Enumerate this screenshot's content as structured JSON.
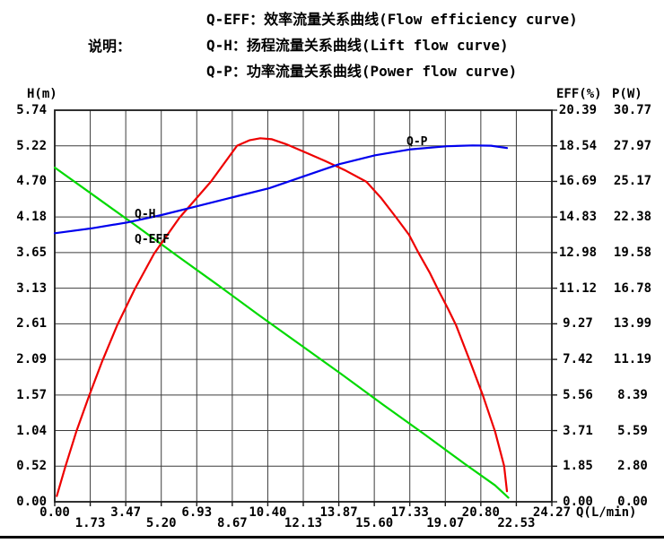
{
  "legend": {
    "label": "说明：",
    "items": [
      {
        "name": "Q-EFF",
        "text": "Q-EFF：效率流量关系曲线(Flow efficiency curve)"
      },
      {
        "name": "Q-H",
        "text": "Q-H：扬程流量关系曲线(Lift flow curve)"
      },
      {
        "name": "Q-P",
        "text": "Q-P：功率流量关系曲线(Power flow curve)"
      }
    ]
  },
  "curve_labels": {
    "qh": "Q-H",
    "qeff": "Q-EFF",
    "qp": "Q-P"
  },
  "chart_data": {
    "type": "line",
    "grid": true,
    "legend_position": "top",
    "xlabel": "Q(L/min)",
    "x_range": [
      0,
      24.27
    ],
    "x_tick_labels": [
      "0.00",
      "1.73",
      "3.47",
      "5.20",
      "6.93",
      "8.67",
      "10.40",
      "12.13",
      "13.87",
      "15.60",
      "17.33",
      "19.07",
      "20.80",
      "22.53",
      "24.27"
    ],
    "axes": {
      "left": {
        "title": "H(m)",
        "range": [
          0,
          5.74
        ],
        "tick_labels": [
          "5.74",
          "5.22",
          "4.70",
          "4.18",
          "3.65",
          "3.13",
          "2.61",
          "2.09",
          "1.57",
          "1.04",
          "0.52",
          "0.00"
        ]
      },
      "right_eff": {
        "title": "EFF(%)",
        "range": [
          0,
          20.39
        ],
        "tick_labels": [
          "20.39",
          "18.54",
          "16.69",
          "14.83",
          "12.98",
          "11.12",
          "9.27",
          "7.42",
          "5.56",
          "3.71",
          "1.85",
          "0.00"
        ]
      },
      "right_p": {
        "title": "P(W)",
        "range": [
          0,
          30.77
        ],
        "tick_labels": [
          "30.77",
          "27.97",
          "25.17",
          "22.38",
          "19.58",
          "16.78",
          "13.99",
          "11.19",
          "8.39",
          "5.59",
          "2.80",
          "0.00"
        ]
      }
    },
    "series": [
      {
        "name": "Q-H",
        "color": "#00d900",
        "y_axis": "left",
        "points": [
          [
            0.0,
            4.9
          ],
          [
            2.0,
            4.47
          ],
          [
            4.0,
            4.04
          ],
          [
            6.0,
            3.6
          ],
          [
            8.0,
            3.17
          ],
          [
            10.0,
            2.73
          ],
          [
            12.0,
            2.3
          ],
          [
            14.0,
            1.87
          ],
          [
            16.0,
            1.43
          ],
          [
            18.0,
            1.0
          ],
          [
            20.0,
            0.56
          ],
          [
            21.5,
            0.24
          ],
          [
            22.15,
            0.06
          ]
        ]
      },
      {
        "name": "Q-EFF",
        "color": "#ee0000",
        "y_axis": "right_eff",
        "points": [
          [
            0.1,
            0.3
          ],
          [
            0.51,
            1.79
          ],
          [
            1.05,
            3.65
          ],
          [
            1.68,
            5.52
          ],
          [
            2.32,
            7.33
          ],
          [
            3.05,
            9.19
          ],
          [
            3.9,
            11.06
          ],
          [
            4.85,
            12.92
          ],
          [
            6.09,
            14.79
          ],
          [
            7.62,
            16.66
          ],
          [
            8.9,
            18.54
          ],
          [
            9.5,
            18.82
          ],
          [
            10.03,
            18.93
          ],
          [
            10.6,
            18.88
          ],
          [
            11.3,
            18.62
          ],
          [
            12.22,
            18.2
          ],
          [
            13.2,
            17.75
          ],
          [
            14.2,
            17.25
          ],
          [
            15.22,
            16.66
          ],
          [
            15.95,
            15.8
          ],
          [
            16.68,
            14.79
          ],
          [
            17.3,
            13.9
          ],
          [
            17.78,
            12.92
          ],
          [
            18.3,
            11.95
          ],
          [
            18.72,
            11.04
          ],
          [
            19.2,
            10.05
          ],
          [
            19.6,
            9.18
          ],
          [
            20.25,
            7.39
          ],
          [
            20.91,
            5.52
          ],
          [
            21.5,
            3.65
          ],
          [
            21.94,
            1.87
          ],
          [
            22.08,
            0.55
          ]
        ]
      },
      {
        "name": "Q-P",
        "color": "#0000ee",
        "y_axis": "right_p",
        "points": [
          [
            0.0,
            21.1
          ],
          [
            1.78,
            21.48
          ],
          [
            3.53,
            21.95
          ],
          [
            5.21,
            22.53
          ],
          [
            6.96,
            23.23
          ],
          [
            8.72,
            23.94
          ],
          [
            10.47,
            24.64
          ],
          [
            12.2,
            25.6
          ],
          [
            13.89,
            26.53
          ],
          [
            15.64,
            27.23
          ],
          [
            17.4,
            27.7
          ],
          [
            19.15,
            27.94
          ],
          [
            20.4,
            28.0
          ],
          [
            21.3,
            27.98
          ],
          [
            22.08,
            27.8
          ]
        ]
      }
    ],
    "colors": {
      "grid": "#3c3c3c",
      "border": "#1a1a1a",
      "text": "#000000"
    }
  }
}
